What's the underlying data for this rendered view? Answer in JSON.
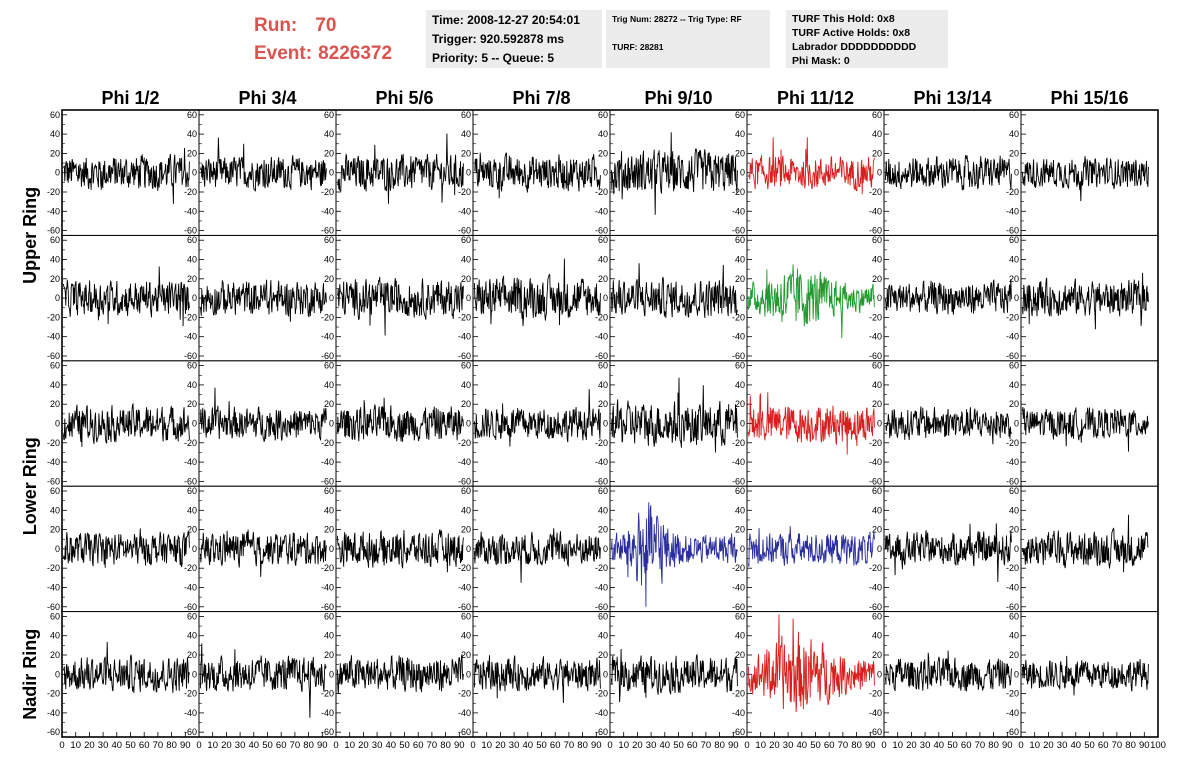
{
  "header": {
    "run_label": "Run:",
    "run_value": "70",
    "event_label": "Event:",
    "event_value": "8226372"
  },
  "info_time": {
    "time": "Time: 2008-12-27 20:54:01",
    "trigger": "Trigger: 920.592878 ms",
    "priority": "Priority: 5 -- Queue: 5"
  },
  "info_trig": {
    "trig_line": "Trig Num: 28272 -- Trig Type: RF",
    "turf_line": "TURF: 28281"
  },
  "info_turf": {
    "this_hold": "TURF This Hold: 0x8",
    "active_holds": "TURF Active Holds: 0x8",
    "labrador": "Labrador DDDDDDDDDD",
    "phi_mask": "Phi Mask: 0"
  },
  "chart_data": {
    "type": "line",
    "layout": "grid of waveform panels, 5 rows x 8 columns",
    "columns": [
      "Phi 1/2",
      "Phi 3/4",
      "Phi 5/6",
      "Phi 7/8",
      "Phi 9/10",
      "Phi 11/12",
      "Phi 13/14",
      "Phi 15/16"
    ],
    "row_groups": [
      {
        "label": "Upper Ring",
        "rows": [
          0,
          1
        ]
      },
      {
        "label": "Lower Ring",
        "rows": [
          2,
          3
        ]
      },
      {
        "label": "Nadir Ring",
        "rows": [
          4
        ]
      }
    ],
    "xlim": [
      0,
      100
    ],
    "ylim": [
      -65,
      65
    ],
    "yticks": [
      -60,
      -40,
      -20,
      0,
      20,
      40,
      60
    ],
    "xticks": [
      0,
      10,
      20,
      30,
      40,
      50,
      60,
      70,
      80,
      90,
      100
    ],
    "samples_per_trace": 260,
    "colors": {
      "default": "#000000",
      "red": "#d81e1e",
      "green": "#1f9a2e",
      "blue": "#2b2f9e"
    },
    "trace_colors": [
      [
        "default",
        "default",
        "default",
        "default",
        "default",
        "red",
        "default",
        "default"
      ],
      [
        "default",
        "default",
        "default",
        "default",
        "default",
        "green",
        "default",
        "default"
      ],
      [
        "default",
        "default",
        "default",
        "default",
        "default",
        "red",
        "default",
        "default"
      ],
      [
        "default",
        "default",
        "default",
        "default",
        "blue",
        "blue",
        "default",
        "default"
      ],
      [
        "default",
        "default",
        "default",
        "default",
        "default",
        "red",
        "default",
        "default"
      ]
    ],
    "trace_amplitude": [
      [
        13,
        12,
        13,
        13,
        16,
        12,
        12,
        11
      ],
      [
        13,
        13,
        14,
        15,
        14,
        14,
        12,
        13
      ],
      [
        13,
        12,
        13,
        12,
        16,
        14,
        12,
        11
      ],
      [
        12,
        12,
        13,
        12,
        15,
        12,
        12,
        13
      ],
      [
        13,
        13,
        13,
        12,
        13,
        18,
        12,
        11
      ]
    ]
  }
}
